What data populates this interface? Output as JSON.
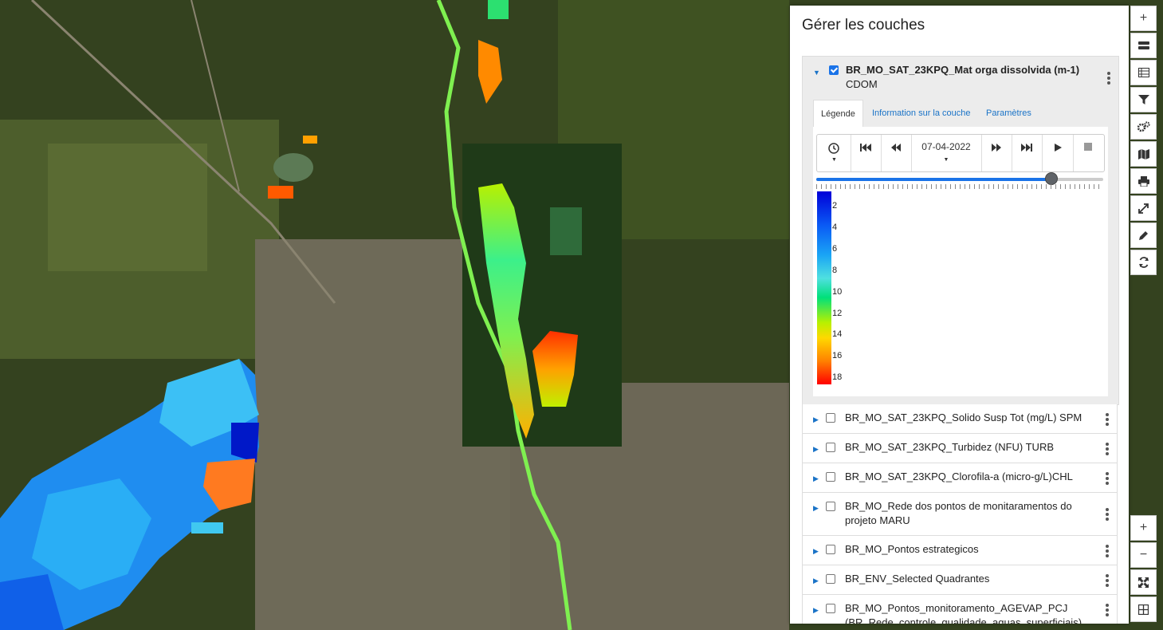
{
  "panel": {
    "title": "Gérer les couches",
    "active_layer": {
      "name": "BR_MO_SAT_23KPQ_Mat orga dissolvida (m-1)",
      "subname": "CDOM",
      "checked": true,
      "tabs": [
        "Légende",
        "Information sur la couche",
        "Paramètres"
      ],
      "player": {
        "date": "07-04-2022",
        "slider_position": 0.82
      },
      "legend": {
        "labels": [
          "2",
          "4",
          "6",
          "8",
          "10",
          "12",
          "14",
          "16",
          "18"
        ]
      }
    },
    "layers": [
      {
        "name": "BR_MO_SAT_23KPQ_Solido Susp Tot (mg/L) SPM",
        "line2": ""
      },
      {
        "name": "BR_MO_SAT_23KPQ_Turbidez (NFU) TURB",
        "line2": ""
      },
      {
        "name": "BR_MO_SAT_23KPQ_Clorofila-a (micro-g/L)CHL",
        "line2": ""
      },
      {
        "name": "BR_MO_Rede dos pontos de monitaramentos do",
        "line2": "projeto MARU"
      },
      {
        "name": "BR_MO_Pontos estrategicos",
        "line2": ""
      },
      {
        "name": "BR_ENV_Selected Quadrantes",
        "line2": ""
      },
      {
        "name": "BR_MO_Pontos_monitoramento_AGEVAP_PCJ",
        "line2": "(BR_Rede_controle_qualidade_aguas_superficiais)"
      }
    ]
  },
  "toolbar": {
    "top": [
      "plus-icon",
      "layers-stack-icon",
      "table-icon",
      "filter-icon",
      "cogs-icon",
      "map-icon",
      "print-icon",
      "expand-icon",
      "pencil-icon",
      "refresh-icon"
    ],
    "bottom": [
      "zoom-in-icon",
      "zoom-out-icon",
      "fullscreen-icon",
      "grid-icon"
    ]
  },
  "colors": {
    "accent": "#1a73e8",
    "scale": [
      "#0000d8",
      "#1aa5f5",
      "#00e07a",
      "#ffd800",
      "#ff0000"
    ]
  }
}
